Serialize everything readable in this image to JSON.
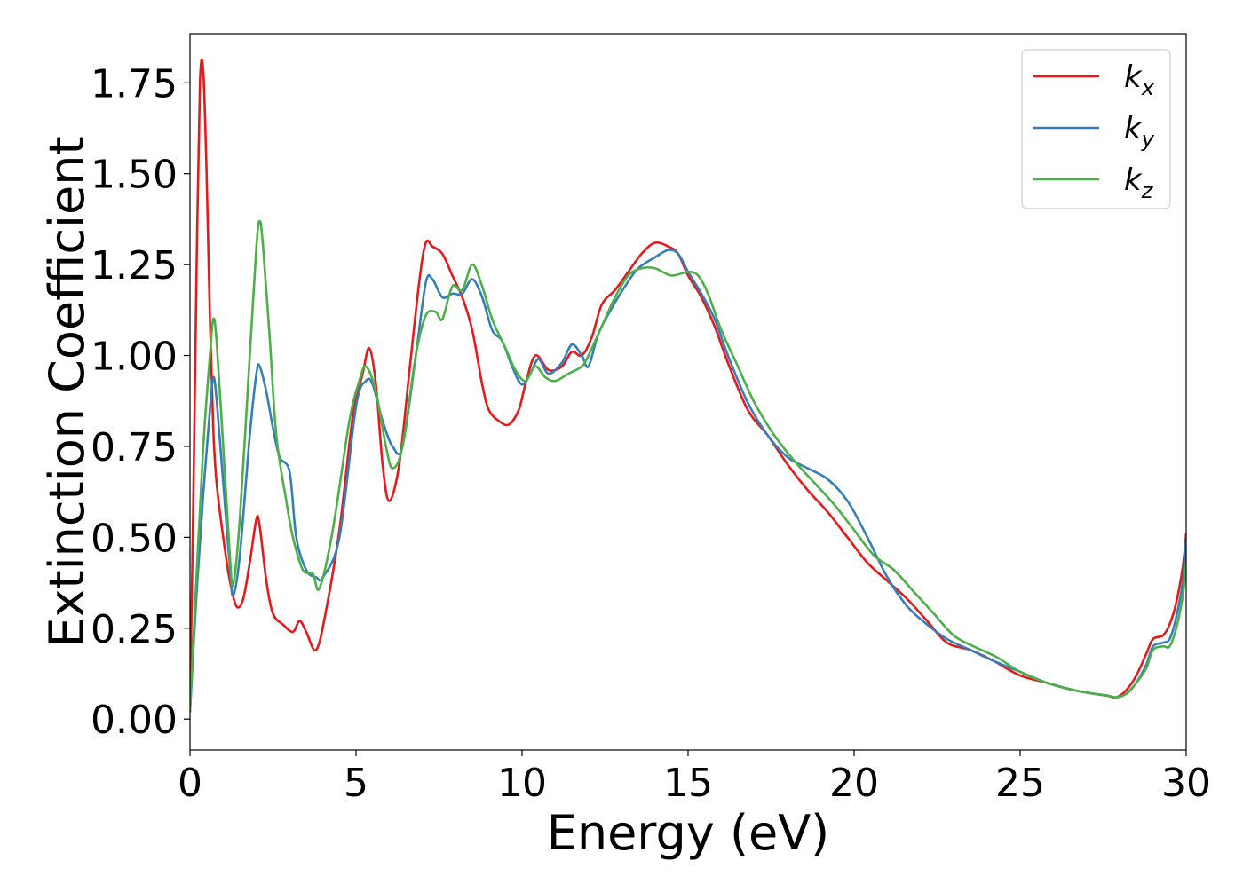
{
  "chart_data": {
    "type": "line",
    "title": "",
    "xlabel": "Energy (eV)",
    "ylabel": "Extinction Coefficient",
    "xlim": [
      0,
      30
    ],
    "ylim": [
      -0.085,
      1.885
    ],
    "xticks": [
      0,
      5,
      10,
      15,
      20,
      25,
      30
    ],
    "xtick_labels": [
      "0",
      "5",
      "10",
      "15",
      "20",
      "25",
      "30"
    ],
    "yticks": [
      0,
      0.25,
      0.5,
      0.75,
      1.0,
      1.25,
      1.5,
      1.75
    ],
    "ytick_labels": [
      "0.00",
      "0.25",
      "0.50",
      "0.75",
      "1.00",
      "1.25",
      "1.50",
      "1.75"
    ],
    "grid": false,
    "legend_position": "top-right",
    "series": [
      {
        "name": "k_x",
        "label_main": "k",
        "label_sub": "x",
        "color": "#e41a1c",
        "x": [
          0,
          0.1,
          0.2,
          0.3,
          0.4,
          0.5,
          0.6,
          0.7,
          0.8,
          1.0,
          1.2,
          1.4,
          1.6,
          1.8,
          2.0,
          2.1,
          2.3,
          2.5,
          2.8,
          3.1,
          3.3,
          3.5,
          3.8,
          4.1,
          4.5,
          4.9,
          5.2,
          5.4,
          5.6,
          5.8,
          6.0,
          6.3,
          6.6,
          6.9,
          7.1,
          7.3,
          7.6,
          7.9,
          8.2,
          8.5,
          8.8,
          9.0,
          9.3,
          9.6,
          9.9,
          10.1,
          10.4,
          10.8,
          11.2,
          11.5,
          11.8,
          12.1,
          12.4,
          12.8,
          13.2,
          13.6,
          14.0,
          14.4,
          14.7,
          15.0,
          15.4,
          15.8,
          16.2,
          16.8,
          17.4,
          18.0,
          18.6,
          19.2,
          19.8,
          20.4,
          21.0,
          21.6,
          22.2,
          22.8,
          23.5,
          24.2,
          25.0,
          25.8,
          26.6,
          27.2,
          27.6,
          27.9,
          28.2,
          28.5,
          28.8,
          29.0,
          29.3,
          29.5,
          29.7,
          29.9,
          30.0
        ],
        "values": [
          0.05,
          0.6,
          1.25,
          1.75,
          1.78,
          1.5,
          1.1,
          0.8,
          0.65,
          0.5,
          0.38,
          0.31,
          0.33,
          0.43,
          0.55,
          0.53,
          0.38,
          0.29,
          0.26,
          0.24,
          0.27,
          0.24,
          0.19,
          0.3,
          0.52,
          0.83,
          0.95,
          1.02,
          0.92,
          0.7,
          0.6,
          0.7,
          0.95,
          1.2,
          1.31,
          1.3,
          1.28,
          1.22,
          1.16,
          1.07,
          0.92,
          0.85,
          0.82,
          0.81,
          0.85,
          0.92,
          1.0,
          0.96,
          0.97,
          1.01,
          1.0,
          1.05,
          1.14,
          1.18,
          1.23,
          1.28,
          1.31,
          1.3,
          1.28,
          1.22,
          1.16,
          1.08,
          0.98,
          0.85,
          0.78,
          0.7,
          0.63,
          0.57,
          0.5,
          0.43,
          0.38,
          0.33,
          0.27,
          0.21,
          0.19,
          0.16,
          0.12,
          0.1,
          0.08,
          0.07,
          0.065,
          0.06,
          0.08,
          0.12,
          0.18,
          0.22,
          0.23,
          0.26,
          0.32,
          0.42,
          0.51
        ]
      },
      {
        "name": "k_y",
        "label_main": "k",
        "label_sub": "y",
        "color": "#377eb8",
        "x": [
          0,
          0.2,
          0.4,
          0.6,
          0.7,
          0.8,
          1.0,
          1.2,
          1.3,
          1.5,
          1.8,
          2.0,
          2.1,
          2.3,
          2.5,
          2.7,
          3.0,
          3.2,
          3.5,
          3.8,
          4.0,
          4.5,
          5.0,
          5.3,
          5.5,
          5.8,
          6.1,
          6.4,
          6.8,
          7.1,
          7.3,
          7.6,
          7.9,
          8.2,
          8.5,
          8.8,
          9.1,
          9.4,
          9.7,
          10.0,
          10.3,
          10.5,
          10.8,
          11.2,
          11.5,
          11.8,
          12.0,
          12.3,
          12.7,
          13.1,
          13.5,
          14.0,
          14.4,
          14.7,
          15.0,
          15.4,
          15.8,
          16.2,
          16.8,
          17.4,
          18.0,
          18.6,
          19.2,
          19.8,
          20.4,
          21.0,
          21.6,
          22.2,
          22.8,
          23.5,
          24.2,
          25.0,
          25.8,
          26.6,
          27.2,
          27.6,
          27.9,
          28.2,
          28.5,
          28.8,
          29.0,
          29.3,
          29.5,
          29.7,
          29.9,
          30.0
        ],
        "values": [
          0.02,
          0.35,
          0.62,
          0.85,
          0.94,
          0.88,
          0.65,
          0.42,
          0.34,
          0.45,
          0.78,
          0.95,
          0.97,
          0.9,
          0.8,
          0.72,
          0.68,
          0.5,
          0.41,
          0.39,
          0.39,
          0.5,
          0.86,
          0.93,
          0.92,
          0.82,
          0.75,
          0.75,
          1.0,
          1.2,
          1.21,
          1.16,
          1.17,
          1.17,
          1.21,
          1.16,
          1.07,
          1.04,
          0.97,
          0.92,
          0.96,
          0.99,
          0.95,
          0.98,
          1.03,
          1.0,
          0.97,
          1.06,
          1.13,
          1.19,
          1.24,
          1.27,
          1.29,
          1.28,
          1.23,
          1.17,
          1.1,
          1.0,
          0.87,
          0.78,
          0.72,
          0.69,
          0.66,
          0.6,
          0.5,
          0.39,
          0.31,
          0.26,
          0.22,
          0.19,
          0.16,
          0.13,
          0.1,
          0.08,
          0.07,
          0.065,
          0.06,
          0.07,
          0.1,
          0.15,
          0.2,
          0.21,
          0.22,
          0.28,
          0.38,
          0.5
        ]
      },
      {
        "name": "k_z",
        "label_main": "k",
        "label_sub": "z",
        "color": "#4daf4a",
        "x": [
          0,
          0.2,
          0.4,
          0.6,
          0.7,
          0.8,
          1.0,
          1.2,
          1.3,
          1.5,
          1.8,
          2.0,
          2.1,
          2.2,
          2.4,
          2.6,
          2.9,
          3.1,
          3.4,
          3.7,
          3.9,
          4.3,
          4.8,
          5.1,
          5.3,
          5.6,
          5.9,
          6.1,
          6.4,
          6.8,
          7.1,
          7.4,
          7.6,
          7.9,
          8.2,
          8.5,
          8.8,
          9.1,
          9.5,
          9.8,
          10.1,
          10.4,
          10.7,
          11.0,
          11.4,
          11.8,
          12.0,
          12.4,
          12.8,
          13.2,
          13.6,
          14.0,
          14.5,
          15.0,
          15.3,
          15.6,
          16.0,
          16.5,
          17.0,
          17.6,
          18.2,
          18.8,
          19.4,
          20.0,
          20.6,
          21.2,
          21.8,
          22.4,
          23.0,
          23.6,
          24.3,
          25.0,
          25.8,
          26.6,
          27.2,
          27.6,
          27.9,
          28.2,
          28.5,
          28.8,
          29.0,
          29.3,
          29.5,
          29.7,
          29.9,
          30.0
        ],
        "values": [
          0.02,
          0.4,
          0.75,
          1.0,
          1.1,
          1.04,
          0.75,
          0.45,
          0.37,
          0.55,
          1.0,
          1.3,
          1.37,
          1.3,
          1.05,
          0.78,
          0.6,
          0.5,
          0.41,
          0.4,
          0.36,
          0.52,
          0.82,
          0.93,
          0.97,
          0.9,
          0.75,
          0.69,
          0.75,
          1.0,
          1.11,
          1.12,
          1.1,
          1.19,
          1.18,
          1.25,
          1.19,
          1.1,
          1.02,
          0.96,
          0.93,
          0.97,
          0.94,
          0.93,
          0.95,
          0.97,
          1.0,
          1.08,
          1.16,
          1.22,
          1.24,
          1.24,
          1.22,
          1.23,
          1.22,
          1.17,
          1.07,
          0.97,
          0.87,
          0.78,
          0.71,
          0.65,
          0.59,
          0.52,
          0.45,
          0.41,
          0.35,
          0.29,
          0.23,
          0.2,
          0.17,
          0.13,
          0.1,
          0.08,
          0.07,
          0.065,
          0.06,
          0.07,
          0.1,
          0.14,
          0.19,
          0.2,
          0.2,
          0.25,
          0.34,
          0.43
        ]
      }
    ]
  }
}
